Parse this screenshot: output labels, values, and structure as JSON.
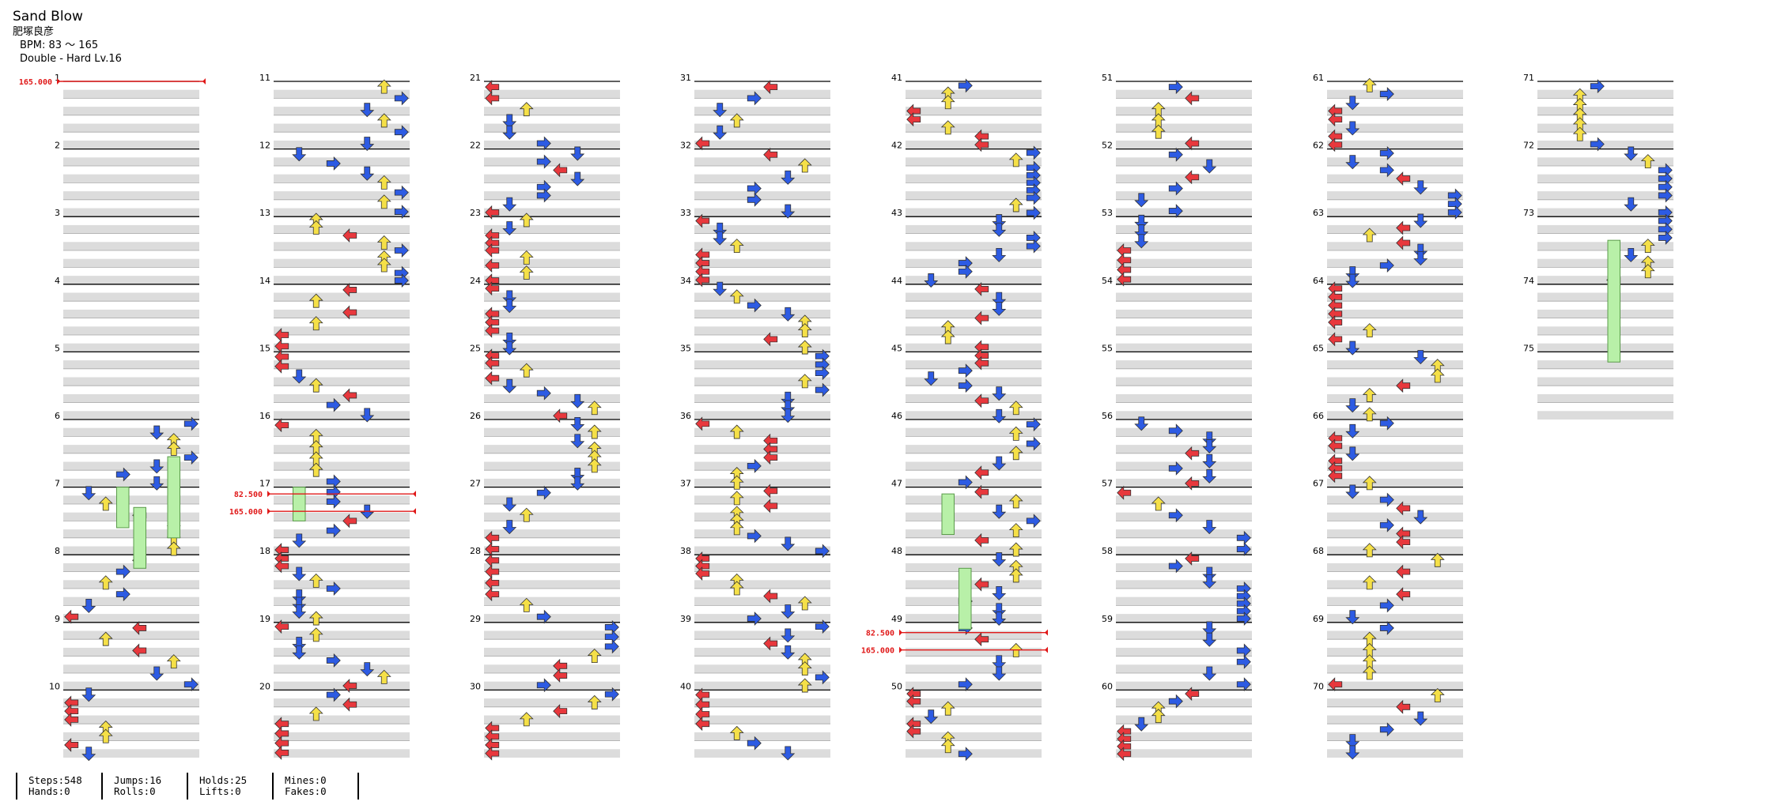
{
  "song": {
    "title": "Sand Blow",
    "artist": "肥塚良彦",
    "bpm_text": "BPM: 83 ～ 165",
    "difficulty_text": "Double - Hard  Lv.16"
  },
  "colors": {
    "red": "#e8383d",
    "blue": "#2d5be3",
    "yellow": "#f5e048",
    "hold": "#b8f0a8",
    "stripe": "#dcdcdc",
    "bpm": "#e01818"
  },
  "measures": [
    "1",
    "2",
    "3",
    "4",
    "5",
    "6",
    "7",
    "8",
    "9",
    "10",
    "11",
    "12",
    "13",
    "14",
    "15",
    "16",
    "17",
    "18",
    "19",
    "20",
    "21",
    "22",
    "23",
    "24",
    "25",
    "26",
    "27",
    "28",
    "29",
    "30",
    "31",
    "32",
    "33",
    "34",
    "35",
    "36",
    "37",
    "38",
    "39",
    "40",
    "41",
    "42",
    "43",
    "44",
    "45",
    "46",
    "47",
    "48",
    "49",
    "50",
    "51",
    "52",
    "53",
    "54",
    "55",
    "56",
    "57",
    "58",
    "59",
    "60",
    "61",
    "62",
    "63",
    "64",
    "65",
    "66",
    "67",
    "68",
    "69",
    "70",
    "71",
    "72",
    "73",
    "74",
    "75"
  ],
  "bpm_changes": [
    {
      "measure": 1,
      "label": "165.000"
    },
    {
      "measure": 17,
      "label": "82.500"
    },
    {
      "measure": 17,
      "label": "165.000"
    },
    {
      "measure": 49,
      "label": "82.500"
    },
    {
      "measure": 49,
      "label": "165.000"
    }
  ],
  "stats": [
    {
      "line1": "Steps:548",
      "line2": "Hands:0"
    },
    {
      "line1": "Jumps:16",
      "line2": "Rolls:0"
    },
    {
      "line1": "Holds:25",
      "line2": "Lifts:0"
    },
    {
      "line1": "Mines:0",
      "line2": "Fakes:0"
    }
  ],
  "note_icons": [
    "arrow-left-icon",
    "arrow-down-icon",
    "arrow-up-icon",
    "arrow-right-icon",
    "hold-bar-icon"
  ]
}
